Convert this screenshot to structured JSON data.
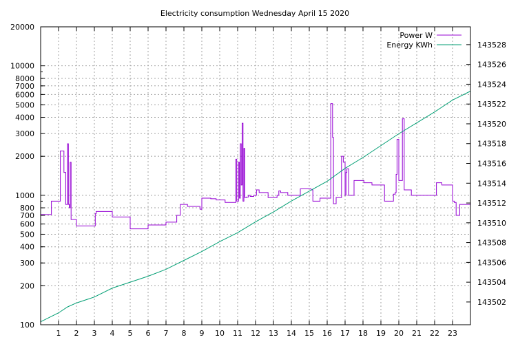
{
  "chart_data": {
    "type": "line",
    "title": "Electricity consumption Wednesday April 15 2020",
    "xlabel": "",
    "ylabel": "",
    "x_range": [
      0,
      24
    ],
    "x_ticks": [
      "1",
      "2",
      "3",
      "4",
      "5",
      "6",
      "7",
      "8",
      "9",
      "10",
      "11",
      "12",
      "13",
      "14",
      "15",
      "16",
      "17",
      "18",
      "19",
      "20",
      "21",
      "22",
      "23"
    ],
    "y_left": {
      "scale": "log",
      "range": [
        100,
        20000
      ],
      "ticks": [
        "100",
        "200",
        "300",
        "400",
        "500",
        "600",
        "700",
        "800",
        "1000",
        "2000",
        "3000",
        "4000",
        "5000",
        "6000",
        "7000",
        "8000",
        "10000",
        "20000"
      ]
    },
    "y_right": {
      "scale": "linear",
      "range": [
        143499.7,
        143529.8
      ],
      "ticks": [
        "143502",
        "143504",
        "143506",
        "143508",
        "143510",
        "143512",
        "143514",
        "143516",
        "143518",
        "143520",
        "143522",
        "143524",
        "143526",
        "143528"
      ]
    },
    "grid": true,
    "legend_position": "top-right",
    "series": [
      {
        "name": "Power W",
        "axis": "left",
        "color": "#9400d3",
        "x": [
          0.0,
          0.5,
          0.6,
          1.0,
          1.1,
          1.3,
          1.4,
          1.5,
          1.55,
          1.6,
          1.65,
          1.7,
          1.75,
          2.0,
          3.0,
          3.05,
          3.1,
          3.95,
          4.0,
          4.1,
          4.8,
          5.0,
          5.9,
          6.0,
          6.5,
          7.0,
          7.5,
          7.6,
          7.8,
          8.0,
          8.2,
          8.5,
          8.9,
          9.0,
          9.5,
          9.8,
          10.3,
          10.8,
          10.9,
          10.95,
          11.05,
          11.1,
          11.15,
          11.2,
          11.25,
          11.3,
          11.35,
          11.4,
          11.5,
          11.6,
          11.7,
          11.9,
          12.05,
          12.2,
          12.7,
          13.2,
          13.3,
          13.4,
          13.8,
          14.3,
          14.5,
          15.1,
          15.2,
          15.6,
          16.2,
          16.3,
          16.35,
          16.5,
          16.8,
          16.9,
          17.0,
          17.05,
          17.1,
          17.2,
          17.5,
          18.0,
          18.05,
          18.5,
          19.0,
          19.2,
          19.7,
          19.8,
          19.85,
          19.9,
          20.0,
          20.2,
          20.3,
          20.4,
          20.7,
          21.0,
          21.5,
          22.0,
          22.1,
          22.4,
          22.9,
          23.0,
          23.1,
          23.2,
          23.4,
          23.9
        ],
        "y": [
          710,
          710,
          900,
          900,
          2200,
          1500,
          850,
          2500,
          850,
          800,
          1800,
          650,
          650,
          580,
          580,
          720,
          750,
          750,
          680,
          680,
          680,
          550,
          550,
          590,
          590,
          620,
          620,
          700,
          850,
          850,
          820,
          820,
          780,
          950,
          940,
          920,
          880,
          880,
          1900,
          900,
          1800,
          950,
          2500,
          1200,
          3600,
          900,
          2300,
          960,
          970,
          1000,
          980,
          1000,
          1100,
          1050,
          960,
          1000,
          1080,
          1050,
          1000,
          1000,
          1120,
          1100,
          900,
          950,
          5100,
          2800,
          860,
          960,
          2000,
          1800,
          1000,
          1500,
          1600,
          1000,
          1300,
          1300,
          1250,
          1200,
          1200,
          900,
          1020,
          1050,
          1450,
          2700,
          1300,
          3900,
          1100,
          1100,
          1000,
          1000,
          1000,
          1000,
          1250,
          1200,
          1200,
          900,
          880,
          700,
          850,
          850
        ]
      },
      {
        "name": "Energy KWh",
        "axis": "right",
        "color": "#009e73",
        "x": [
          0,
          1,
          1.5,
          2,
          3,
          4,
          5,
          6,
          7,
          8,
          9,
          10,
          11,
          12,
          13,
          14,
          15,
          16,
          17,
          18,
          19,
          20,
          21,
          22,
          23,
          24
        ],
        "y": [
          143500.0,
          143500.9,
          143501.5,
          143501.9,
          143502.5,
          143503.4,
          143504.0,
          143504.6,
          143505.3,
          143506.2,
          143507.1,
          143508.1,
          143509.0,
          143510.1,
          143511.1,
          143512.2,
          143513.2,
          143514.2,
          143515.5,
          143516.6,
          143517.8,
          143519.0,
          143520.1,
          143521.2,
          143522.4,
          143523.3
        ]
      }
    ]
  }
}
